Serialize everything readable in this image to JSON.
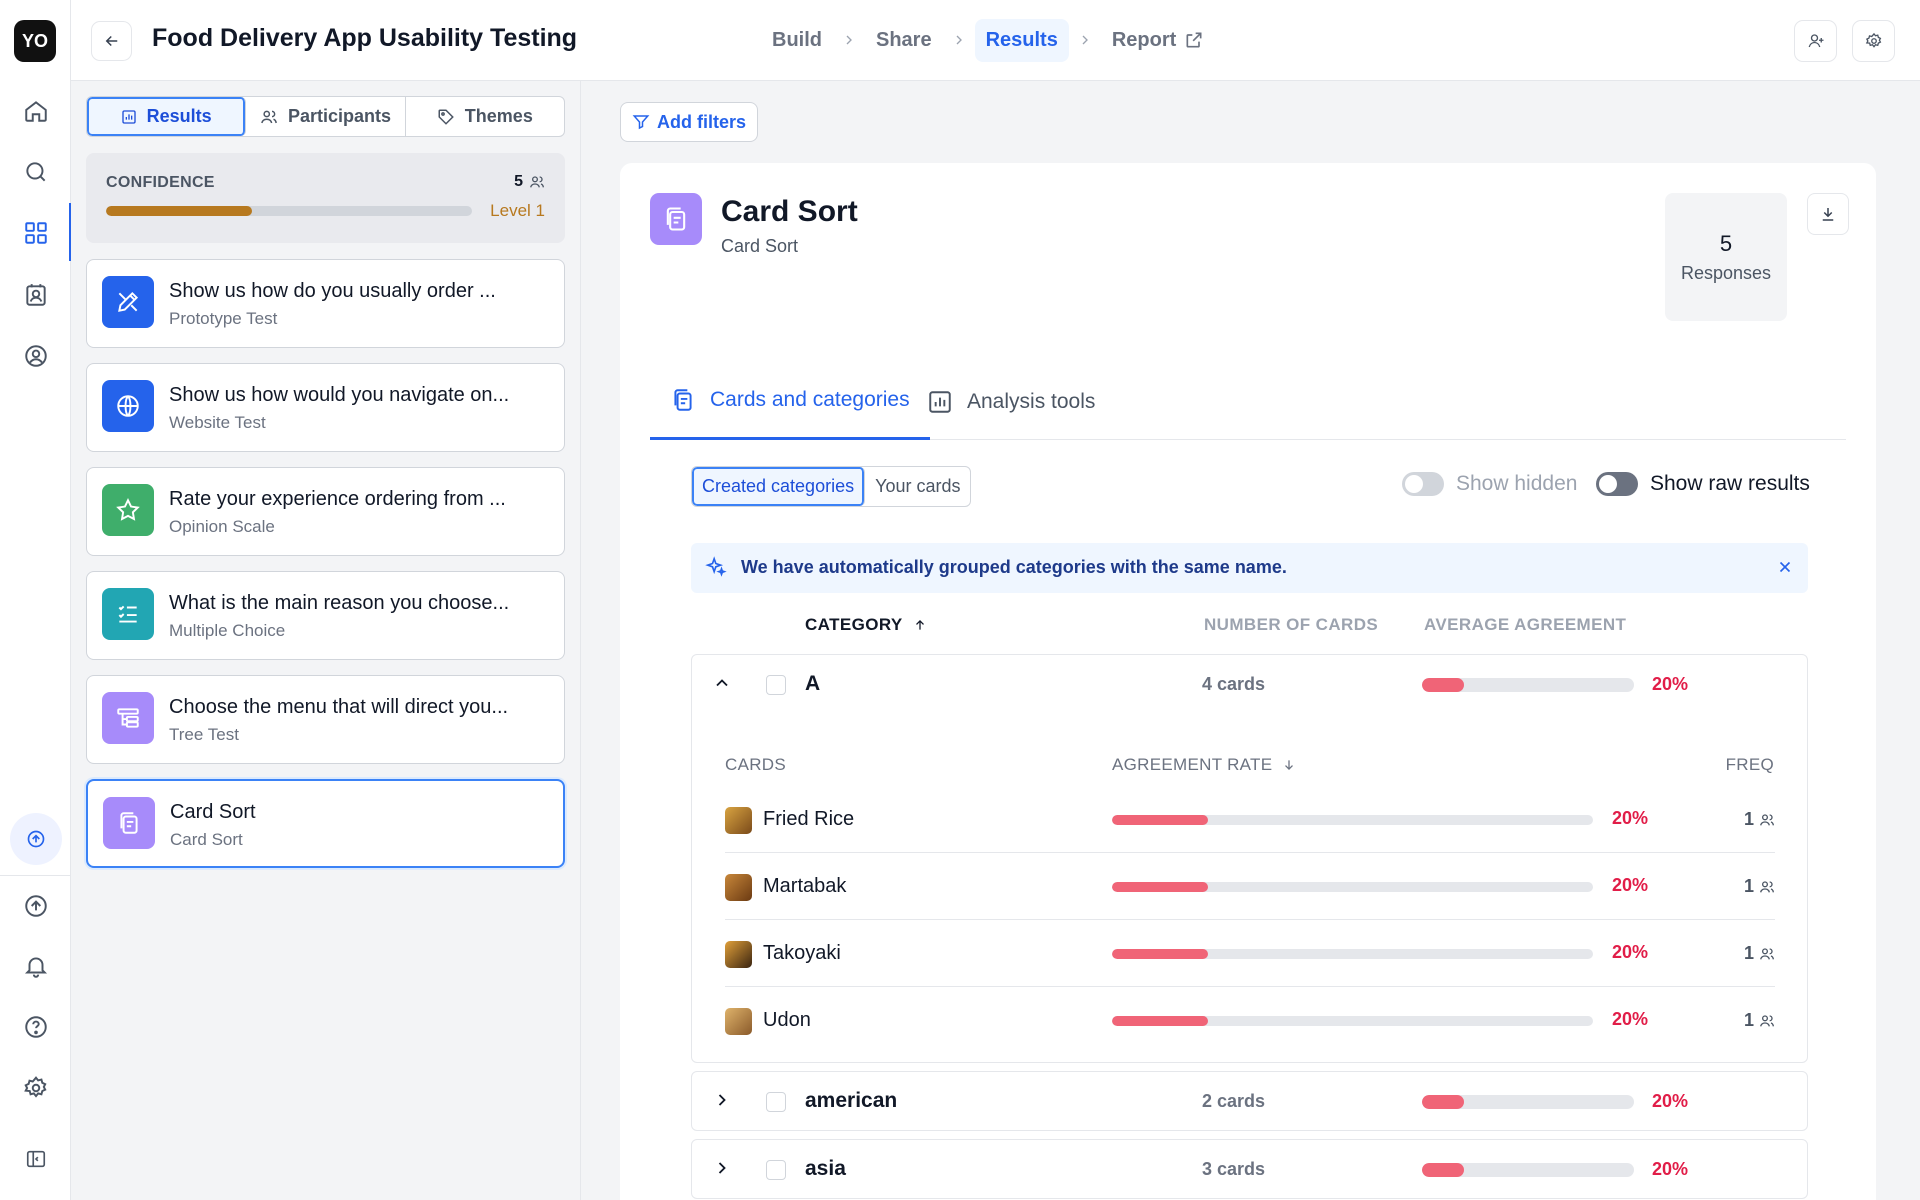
{
  "rail": {
    "logo": "YO"
  },
  "header": {
    "title": "Food Delivery App Usability Testing",
    "steps": [
      "Build",
      "Share",
      "Results",
      "Report"
    ]
  },
  "left": {
    "tabs": [
      "Results",
      "Participants",
      "Themes"
    ],
    "confidence": {
      "label": "CONFIDENCE",
      "count": "5",
      "level": "Level 1",
      "progress": 0.4
    },
    "tasks": [
      {
        "title": "Show us how do you usually order ...",
        "type": "Prototype Test",
        "icon": "pen-tool-icon",
        "color": "#2563eb"
      },
      {
        "title": "Show us how would you navigate on...",
        "type": "Website Test",
        "icon": "globe-icon",
        "color": "#2563eb"
      },
      {
        "title": "Rate your experience ordering from ...",
        "type": "Opinion Scale",
        "icon": "star-icon",
        "color": "#3fae6b"
      },
      {
        "title": "What is the main reason you choose...",
        "type": "Multiple Choice",
        "icon": "list-check-icon",
        "color": "#22a6b3"
      },
      {
        "title": "Choose the menu that will direct you...",
        "type": "Tree Test",
        "icon": "tree-icon",
        "color": "#a78bfa"
      },
      {
        "title": "Card Sort",
        "type": "Card Sort",
        "icon": "cards-icon",
        "color": "#a78bfa"
      }
    ]
  },
  "main": {
    "filters_label": "Add filters",
    "title": "Card Sort",
    "subtitle": "Card Sort",
    "responses": {
      "count": "5",
      "label": "Responses"
    },
    "tabs": [
      "Cards and categories",
      "Analysis tools"
    ],
    "view_tabs": [
      "Created categories",
      "Your cards"
    ],
    "toggles": {
      "hidden": "Show hidden",
      "raw": "Show raw results"
    },
    "banner": "We have automatically grouped categories with the same name.",
    "columns": {
      "category": "CATEGORY",
      "cards": "NUMBER OF CARDS",
      "agreement": "AVERAGE AGREEMENT"
    },
    "sub_columns": {
      "cards": "CARDS",
      "rate": "AGREEMENT RATE",
      "freq": "FREQ"
    },
    "groups": [
      {
        "name": "A",
        "count": "4 cards",
        "pct": "20%",
        "value": 0.2,
        "cards": [
          {
            "name": "Fried Rice",
            "pct": "20%",
            "value": 0.2,
            "freq": "1"
          },
          {
            "name": "Martabak",
            "pct": "20%",
            "value": 0.2,
            "freq": "1"
          },
          {
            "name": "Takoyaki",
            "pct": "20%",
            "value": 0.2,
            "freq": "1"
          },
          {
            "name": "Udon",
            "pct": "20%",
            "value": 0.2,
            "freq": "1"
          }
        ]
      },
      {
        "name": "american",
        "count": "2 cards",
        "pct": "20%",
        "value": 0.2
      },
      {
        "name": "asia",
        "count": "3 cards",
        "pct": "20%",
        "value": 0.2
      }
    ]
  }
}
